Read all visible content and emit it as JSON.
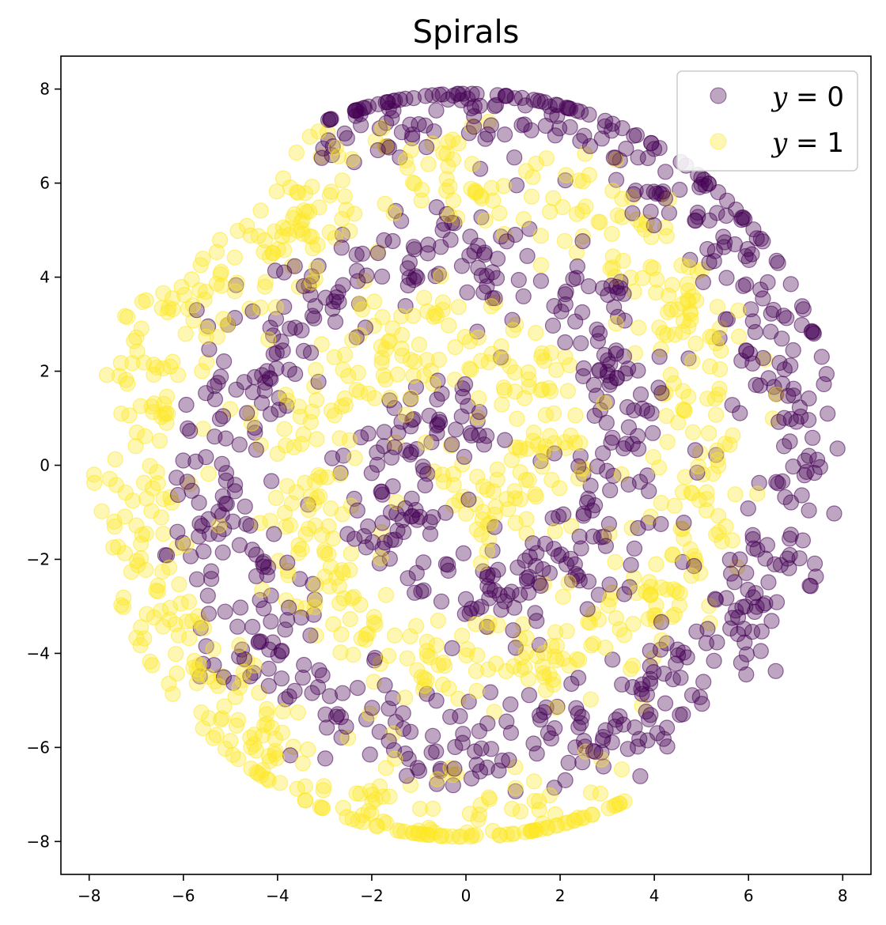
{
  "chart_data": {
    "type": "scatter",
    "title": "Spirals",
    "xlabel": "",
    "ylabel": "",
    "xlim": [
      -8.6,
      8.6
    ],
    "ylim": [
      -8.7,
      8.7
    ],
    "xticks": [
      -8,
      -6,
      -4,
      -2,
      0,
      2,
      4,
      6,
      8
    ],
    "yticks": [
      -8,
      -6,
      -4,
      -2,
      0,
      2,
      4,
      6,
      8
    ],
    "xtick_labels": [
      "−8",
      "−6",
      "−4",
      "−2",
      "0",
      "2",
      "4",
      "6",
      "8"
    ],
    "ytick_labels": [
      "−8",
      "−6",
      "−4",
      "−2",
      "0",
      "2",
      "4",
      "6",
      "8"
    ],
    "grid": false,
    "legend_position": "top-right",
    "generator": {
      "description": "two interleaved spirals filling a disk of radius ~8",
      "points_per_class": 1000,
      "max_radius": 8.0,
      "arm_offset_radians": 3.14159,
      "spiral_rate": 0.55,
      "noise": 1.1
    },
    "series": [
      {
        "name": "y = 0",
        "label_var": "y",
        "label_val": "0",
        "color": "#440154",
        "alpha": 0.35
      },
      {
        "name": "y = 1",
        "label_var": "y",
        "label_val": "1",
        "color": "#fde725",
        "alpha": 0.35
      }
    ]
  }
}
